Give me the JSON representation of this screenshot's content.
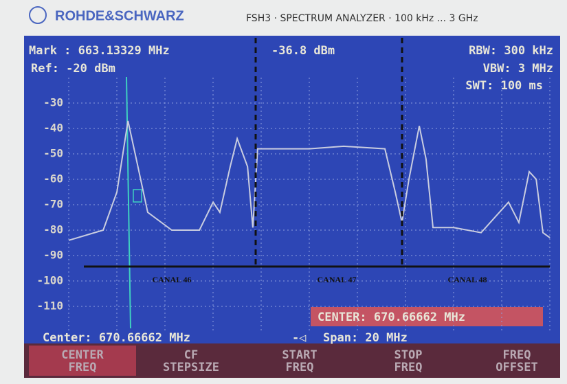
{
  "header": {
    "brand": "ROHDE&SCHWARZ",
    "model": "FSH3 · SPECTRUM ANALYZER · 100 kHz ... 3 GHz"
  },
  "chart_data": {
    "type": "line",
    "marker": "Mark : 663.13329 MHz",
    "marker_level": "-36.8 dBm",
    "ref": "Ref: -20 dBm",
    "rbw": "RBW: 300 kHz",
    "vbw": "VBW: 3 MHz",
    "swt": "SWT: 100 ms",
    "center_box": "CENTER: 670.66662 MHz",
    "center": "Center: 670.66662 MHz",
    "span": "Span: 20 MHz",
    "annotations": [
      "CANAL 46",
      "CANAL 47",
      "CANAL 48"
    ],
    "x": [
      660.67,
      662.1,
      662.67,
      663.13,
      663.52,
      663.95,
      664.95,
      666.1,
      666.67,
      666.95,
      667.38,
      667.67,
      668.1,
      668.32,
      668.52,
      670.67,
      672.1,
      673.81,
      674.24,
      674.52,
      674.81,
      675.24,
      675.52,
      675.81,
      676.67,
      677.81,
      678.95,
      679.38,
      679.81,
      680.1,
      680.38,
      680.67
    ],
    "series": [
      {
        "color": "#c9cde0",
        "values": [
          -84,
          -80,
          -65,
          -37,
          -54,
          -73,
          -80,
          -80,
          -69,
          -73,
          -55,
          -44,
          -55,
          -79,
          -48,
          -48,
          -47,
          -48,
          -65,
          -77,
          -60,
          -39,
          -52,
          -79,
          -79,
          -81,
          -69,
          -77,
          -57,
          -60,
          -81,
          -83
        ]
      }
    ],
    "xlim": [
      660.66662,
      680.66662
    ],
    "ylim": [
      -120,
      -20
    ],
    "yticks": [
      -30,
      -40,
      -50,
      -60,
      -70,
      -80,
      -90,
      -100,
      -110
    ],
    "grid": true
  },
  "softkeys": [
    [
      "CENTER",
      "FREQ"
    ],
    [
      "CF",
      "STEPSIZE"
    ],
    [
      "START",
      "FREQ"
    ],
    [
      "STOP",
      "FREQ"
    ],
    [
      "FREQ",
      "OFFSET"
    ]
  ]
}
